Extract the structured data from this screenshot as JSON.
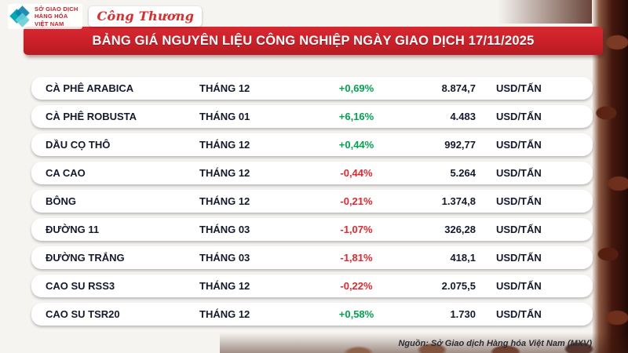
{
  "page": {
    "title": "BẢNG GIÁ NGUYÊN LIỆU CÔNG NGHIỆP NGÀY GIAO DỊCH 17/11/2025",
    "source": "Nguồn: Sở Giao dịch Hàng hóa Việt Nam (MXV)"
  },
  "logos": {
    "mxv_text": "SỞ GIAO DỊCH\nHÀNG HÓA\nVIỆT NAM",
    "congthuong_text": "Công Thương"
  },
  "colors": {
    "positive": "#00a54f",
    "negative": "#e8262d",
    "banner_red": "#c91f27"
  },
  "table": {
    "unit_label": "USD/TẤN",
    "rows": [
      {
        "name": "CÀ PHÊ ARABICA",
        "month": "THÁNG 12",
        "change": "+0,69%",
        "price": "8.874,7",
        "unit": "USD/TẤN"
      },
      {
        "name": "CÀ PHÊ ROBUSTA",
        "month": "THÁNG 01",
        "change": "+6,16%",
        "price": "4.483",
        "unit": "USD/TẤN"
      },
      {
        "name": "DẦU CỌ THÔ",
        "month": "THÁNG 12",
        "change": "+0,44%",
        "price": "992,77",
        "unit": "USD/TẤN"
      },
      {
        "name": "CA CAO",
        "month": "THÁNG 12",
        "change": "-0,44%",
        "price": "5.264",
        "unit": "USD/TẤN"
      },
      {
        "name": "BÔNG",
        "month": "THÁNG 12",
        "change": "-0,21%",
        "price": "1.374,8",
        "unit": "USD/TẤN"
      },
      {
        "name": "ĐƯỜNG 11",
        "month": "THÁNG 03",
        "change": "-1,07%",
        "price": "326,28",
        "unit": "USD/TẤN"
      },
      {
        "name": "ĐƯỜNG TRẮNG",
        "month": "THÁNG 03",
        "change": "-1,81%",
        "price": "418,1",
        "unit": "USD/TẤN"
      },
      {
        "name": "CAO SU RSS3",
        "month": "THÁNG 12",
        "change": "-0,22%",
        "price": "2.075,5",
        "unit": "USD/TẤN"
      },
      {
        "name": "CAO SU TSR20",
        "month": "THÁNG 12",
        "change": "+0,58%",
        "price": "1.730",
        "unit": "USD/TẤN"
      }
    ]
  },
  "chart_data": {
    "type": "table",
    "title": "BẢNG GIÁ NGUYÊN LIỆU CÔNG NGHIỆP NGÀY GIAO DỊCH 17/11/2025",
    "rows": [
      {
        "commodity": "CÀ PHÊ ARABICA",
        "contract_month": "THÁNG 12",
        "change_pct": 0.69,
        "price": 8874.7,
        "unit": "USD/TẤN"
      },
      {
        "commodity": "CÀ PHÊ ROBUSTA",
        "contract_month": "THÁNG 01",
        "change_pct": 6.16,
        "price": 4483,
        "unit": "USD/TẤN"
      },
      {
        "commodity": "DẦU CỌ THÔ",
        "contract_month": "THÁNG 12",
        "change_pct": 0.44,
        "price": 992.77,
        "unit": "USD/TẤN"
      },
      {
        "commodity": "CA CAO",
        "contract_month": "THÁNG 12",
        "change_pct": -0.44,
        "price": 5264,
        "unit": "USD/TẤN"
      },
      {
        "commodity": "BÔNG",
        "contract_month": "THÁNG 12",
        "change_pct": -0.21,
        "price": 1374.8,
        "unit": "USD/TẤN"
      },
      {
        "commodity": "ĐƯỜNG 11",
        "contract_month": "THÁNG 03",
        "change_pct": -1.07,
        "price": 326.28,
        "unit": "USD/TẤN"
      },
      {
        "commodity": "ĐƯỜNG TRẮNG",
        "contract_month": "THÁNG 03",
        "change_pct": -1.81,
        "price": 418.1,
        "unit": "USD/TẤN"
      },
      {
        "commodity": "CAO SU RSS3",
        "contract_month": "THÁNG 12",
        "change_pct": -0.22,
        "price": 2075.5,
        "unit": "USD/TẤN"
      },
      {
        "commodity": "CAO SU TSR20",
        "contract_month": "THÁNG 12",
        "change_pct": 0.58,
        "price": 1730,
        "unit": "USD/TẤN"
      }
    ]
  }
}
